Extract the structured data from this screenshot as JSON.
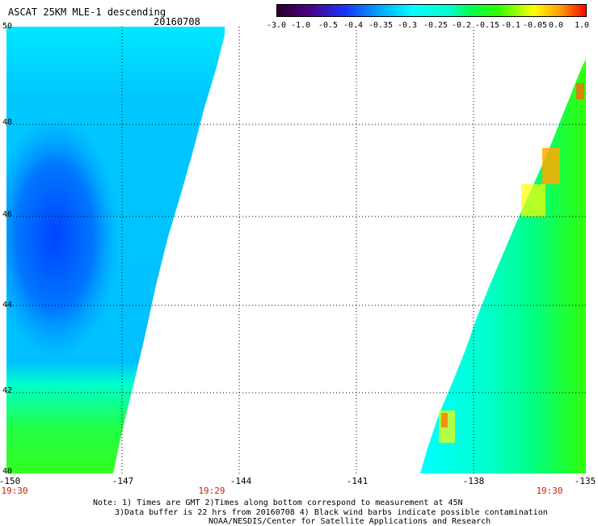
{
  "header": {
    "title": "ASCAT 25KM MLE-1 descending",
    "date": "20160708"
  },
  "colorbar": {
    "tick_labels": [
      "-3.0",
      "-1.0",
      "-0.5",
      "-0.4",
      "-0.35",
      "-0.3",
      "-0.25",
      "-0.2",
      "-0.15",
      "-0.1",
      "-0.05",
      "0.0",
      "1.0"
    ],
    "colors": [
      "#2a002a",
      "#4b0082",
      "#2233ff",
      "#00a5ff",
      "#00ffff",
      "#00ffcc",
      "#00ff88",
      "#22ff22",
      "#99ff00",
      "#ffff00",
      "#ffaa00",
      "#ff5500",
      "#ff0000"
    ]
  },
  "axes": {
    "x_ticks": [
      "-150",
      "-147",
      "-144",
      "-141",
      "-138",
      "-135"
    ],
    "y_ticks": [
      "50",
      "48",
      "46",
      "44",
      "42",
      "40"
    ],
    "time_labels": [
      "19:30",
      "19:29",
      "19:30"
    ]
  },
  "notes": [
    "Note: 1) Times are GMT 2)Times along bottom correspond to measurement at 45N",
    "3)Data buffer is 22 hrs from 20160708 4) Black wind barbs indicate possible contamination",
    "NOAA/NESDIS/Center for Satellite Applications and Research"
  ],
  "colors": {
    "time_label": "#cc2200"
  }
}
